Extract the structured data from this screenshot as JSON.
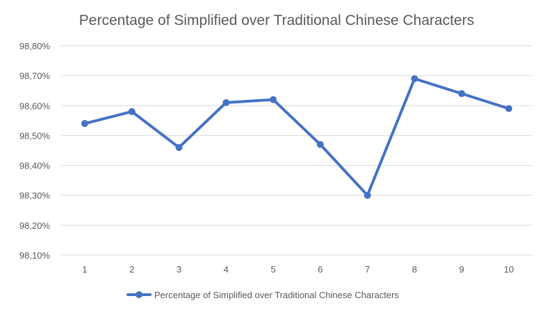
{
  "chart_data": {
    "type": "line",
    "title": "Percentage of Simplified over Traditional Chinese Characters",
    "xlabel": "",
    "ylabel": "",
    "x": [
      1,
      2,
      3,
      4,
      5,
      6,
      7,
      8,
      9,
      10
    ],
    "x_tick_labels": [
      "1",
      "2",
      "3",
      "4",
      "5",
      "6",
      "7",
      "8",
      "9",
      "10"
    ],
    "y_tick_labels": [
      "98,10%",
      "98,20%",
      "98,30%",
      "98,40%",
      "98,50%",
      "98,60%",
      "98,70%",
      "98,80%"
    ],
    "y_ticks": [
      98.1,
      98.2,
      98.3,
      98.4,
      98.5,
      98.6,
      98.7,
      98.8
    ],
    "ylim": [
      98.1,
      98.8
    ],
    "grid": true,
    "legend_position": "bottom",
    "series": [
      {
        "name": "Percentage of Simplified over Traditional Chinese Characters",
        "values": [
          98.54,
          98.58,
          98.46,
          98.61,
          98.62,
          98.47,
          98.3,
          98.69,
          98.64,
          98.59
        ],
        "color": "#4472c4"
      }
    ]
  }
}
